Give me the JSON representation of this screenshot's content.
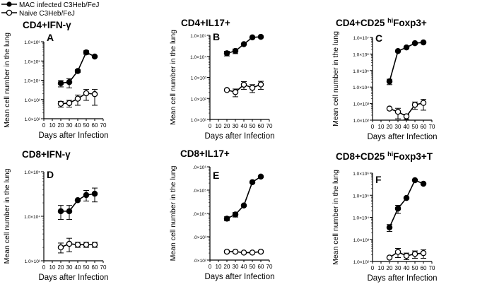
{
  "figure": {
    "legend": [
      {
        "label": "MAC infected C3Heb/FeJ",
        "marker": "filled-circle"
      },
      {
        "label": "Naive C3Heb/FeJ",
        "marker": "open-circle"
      }
    ]
  },
  "colors": {
    "line": "#000000",
    "open_fill": "#ffffff",
    "background": "#ffffff"
  },
  "chart_data": [
    {
      "type": "line",
      "panel": "A",
      "title": "CD4+IFN-γ",
      "title_parts": [
        "CD4+IFN-",
        "γ"
      ],
      "title_sup": "",
      "xlabel": "Days after Infection",
      "ylabel": "Mean cell number in the lung",
      "xlim": [
        0,
        70
      ],
      "xticks": [
        0,
        10,
        20,
        30,
        40,
        50,
        60,
        70
      ],
      "xtick_labels": [
        "0",
        "10",
        "20",
        "30",
        "40",
        "50",
        "60",
        "70"
      ],
      "yscale": "log",
      "ylim": [
        100,
        1000000
      ],
      "yticks": [
        100,
        1000,
        10000,
        100000,
        1000000
      ],
      "ytick_labels": [
        "1.0×10²",
        "1.0×10³",
        "1.0×10⁴",
        "1.0×10⁵",
        "1.0×10⁶"
      ],
      "series": [
        {
          "name": "MAC infected C3Heb/FeJ",
          "filled": true,
          "x": [
            20,
            30,
            40,
            50,
            60
          ],
          "values": [
            7000,
            8000,
            30000,
            280000,
            170000
          ],
          "err": [
            2500,
            4000,
            5000,
            60000,
            0
          ]
        },
        {
          "name": "Naive C3Heb/FeJ",
          "filled": false,
          "x": [
            20,
            30,
            40,
            50,
            60
          ],
          "values": [
            600,
            650,
            1100,
            2100,
            1900
          ],
          "err": [
            200,
            250,
            600,
            1200,
            1400
          ]
        }
      ]
    },
    {
      "type": "line",
      "panel": "B",
      "title": "CD4+IL17+",
      "title_parts": [
        "CD4+IL17+",
        ""
      ],
      "title_sup": "",
      "xlabel": "Days after Infection",
      "ylabel": "Mean cell number in the lung",
      "xlim": [
        0,
        70
      ],
      "xticks": [
        0,
        10,
        20,
        30,
        40,
        50,
        60,
        70
      ],
      "xtick_labels": [
        "0",
        "10",
        "20",
        "30",
        "40",
        "50",
        "60",
        "70"
      ],
      "yscale": "log",
      "ylim": [
        10,
        100000
      ],
      "yticks": [
        10,
        100,
        1000,
        10000,
        100000
      ],
      "ytick_labels": [
        "1.0×10¹",
        "1.0×10²",
        "1.0×10³",
        "1.0×10⁴",
        "1.0×10⁵"
      ],
      "series": [
        {
          "name": "MAC infected C3Heb/FeJ",
          "filled": true,
          "x": [
            20,
            30,
            40,
            50,
            60
          ],
          "values": [
            14000,
            18000,
            38000,
            80000,
            85000
          ],
          "err": [
            3500,
            4500,
            0,
            0,
            0
          ]
        },
        {
          "name": "Naive C3Heb/FeJ",
          "filled": false,
          "x": [
            20,
            30,
            40,
            50,
            60
          ],
          "values": [
            250,
            200,
            450,
            320,
            460
          ],
          "err": [
            0,
            80,
            180,
            130,
            190
          ]
        }
      ]
    },
    {
      "type": "line",
      "panel": "C",
      "title": "CD4+CD25 hiFoxp3+",
      "title_parts": [
        "CD4+CD25 ",
        "Foxp3+"
      ],
      "title_sup": "hi",
      "xlabel": "Days after Infection",
      "ylabel": "Mean cell number in the lung",
      "xlim": [
        0,
        70
      ],
      "xticks": [
        0,
        10,
        20,
        30,
        40,
        50,
        60,
        70
      ],
      "xtick_labels": [
        "0",
        "10",
        "20",
        "30",
        "40",
        "50",
        "60",
        "70"
      ],
      "yscale": "log",
      "ylim": [
        100,
        10000000
      ],
      "yticks": [
        100,
        1000,
        10000,
        100000,
        1000000,
        10000000
      ],
      "ytick_labels": [
        "1.0×10²",
        "1.0×10³",
        "1.0×10⁴",
        "1.0×10⁵",
        "1.0×10⁶",
        "1.0×10⁷"
      ],
      "series": [
        {
          "name": "MAC infected C3Heb/FeJ",
          "filled": true,
          "x": [
            20,
            30,
            40,
            50,
            60
          ],
          "values": [
            22000,
            1500000,
            2500000,
            4500000,
            5000000
          ],
          "err": [
            8000,
            0,
            0,
            0,
            0
          ]
        },
        {
          "name": "Naive C3Heb/FeJ",
          "filled": false,
          "x": [
            20,
            30,
            40,
            50,
            60
          ],
          "values": [
            500,
            320,
            170,
            850,
            1100
          ],
          "err": [
            0,
            200,
            60,
            400,
            700
          ]
        }
      ]
    },
    {
      "type": "line",
      "panel": "D",
      "title": "CD8+IFN-γ",
      "title_parts": [
        "CD8+IFN-",
        "γ"
      ],
      "title_sup": "",
      "xlabel": "Days after Infection",
      "ylabel": "Mean cell number in the lung",
      "xlim": [
        0,
        70
      ],
      "xticks": [
        0,
        10,
        20,
        30,
        40,
        50,
        60,
        70
      ],
      "xtick_labels": [
        "0",
        "10",
        "20",
        "30",
        "40",
        "50",
        "60",
        "70"
      ],
      "yscale": "log",
      "ylim": [
        1000,
        100000
      ],
      "yticks": [
        1000,
        10000,
        100000
      ],
      "ytick_labels": [
        "1.0×10³",
        "1.0×10⁴",
        "1.0×10⁵"
      ],
      "series": [
        {
          "name": "MAC infected C3Heb/FeJ",
          "filled": true,
          "x": [
            20,
            30,
            40,
            50,
            60
          ],
          "values": [
            13000,
            13000,
            23000,
            30000,
            32000
          ],
          "err": [
            4500,
            4500,
            0,
            8000,
            11000
          ]
        },
        {
          "name": "Naive C3Heb/FeJ",
          "filled": false,
          "x": [
            20,
            30,
            40,
            50,
            60
          ],
          "values": [
            2000,
            2400,
            2300,
            2300,
            2300
          ],
          "err": [
            500,
            800,
            300,
            300,
            300
          ]
        }
      ]
    },
    {
      "type": "line",
      "panel": "E",
      "title": "CD8+IL17+",
      "title_parts": [
        "CD8+IL17+",
        ""
      ],
      "title_sup": "",
      "xlabel": "Days after Infection",
      "ylabel": "Mean cell number in the lung",
      "xlim": [
        0,
        70
      ],
      "xticks": [
        0,
        10,
        20,
        30,
        40,
        50,
        60,
        70
      ],
      "xtick_labels": [
        "0",
        "10",
        "20",
        "30",
        "40",
        "50",
        "60",
        "70"
      ],
      "yscale": "log",
      "ylim": [
        100,
        1000000
      ],
      "yticks": [
        100,
        1000,
        10000,
        100000,
        1000000
      ],
      "ytick_labels": [
        ".0×10²",
        ".0×10³",
        ".0×10⁴",
        ".0×10⁵",
        ".0×10⁶"
      ],
      "series": [
        {
          "name": "MAC infected C3Heb/FeJ",
          "filled": true,
          "x": [
            20,
            30,
            40,
            50,
            60
          ],
          "values": [
            6000,
            9000,
            22000,
            220000,
            380000
          ],
          "err": [
            1200,
            2000,
            0,
            0,
            0
          ]
        },
        {
          "name": "Naive C3Heb/FeJ",
          "filled": false,
          "x": [
            20,
            30,
            40,
            50,
            60
          ],
          "values": [
            230,
            230,
            210,
            210,
            230
          ],
          "err": [
            0,
            0,
            0,
            0,
            0
          ]
        }
      ]
    },
    {
      "type": "line",
      "panel": "F",
      "title": "CD8+CD25 hiFoxp3+T",
      "title_parts": [
        "CD8+CD25 ",
        "Foxp3+T"
      ],
      "title_sup": "hi",
      "xlabel": "Days after Infection",
      "ylabel": "Mean cell number in the lung",
      "xlim": [
        0,
        70
      ],
      "xticks": [
        0,
        10,
        20,
        30,
        40,
        50,
        60,
        70
      ],
      "xtick_labels": [
        "0",
        "10",
        "20",
        "30",
        "40",
        "50",
        "60",
        "70"
      ],
      "yscale": "log",
      "ylim": [
        100,
        1000000
      ],
      "yticks": [
        100,
        1000,
        10000,
        100000,
        1000000
      ],
      "ytick_labels": [
        "1.0×10²",
        "1.0×10³",
        "1.0×10⁴",
        "1.0×10⁵",
        "1.0×10⁶"
      ],
      "series": [
        {
          "name": "MAC infected C3Heb/FeJ",
          "filled": true,
          "x": [
            20,
            30,
            40,
            50,
            60
          ],
          "values": [
            3500,
            25000,
            75000,
            480000,
            330000
          ],
          "err": [
            1200,
            10000,
            0,
            0,
            0
          ]
        },
        {
          "name": "Naive C3Heb/FeJ",
          "filled": false,
          "x": [
            20,
            30,
            40,
            50,
            60
          ],
          "values": [
            150,
            270,
            180,
            220,
            240
          ],
          "err": [
            0,
            120,
            60,
            80,
            100
          ]
        }
      ]
    }
  ]
}
